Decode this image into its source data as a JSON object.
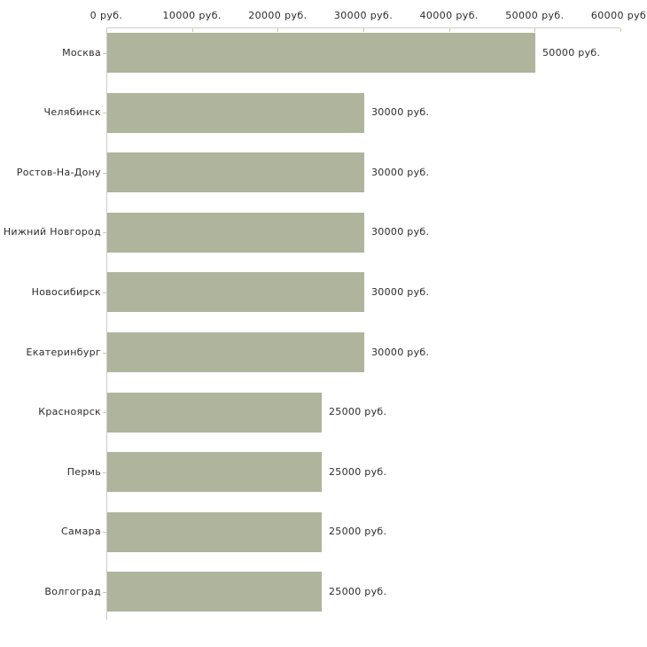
{
  "chart_data": {
    "type": "bar",
    "orientation": "horizontal",
    "title": "",
    "xlabel": "",
    "ylabel": "",
    "grid": false,
    "legend": false,
    "categories": [
      "Москва",
      "Челябинск",
      "Ростов-На-Дону",
      "Нижний Новгород",
      "Новосибирск",
      "Екатеринбург",
      "Красноярск",
      "Пермь",
      "Самара",
      "Волгоград"
    ],
    "values": [
      50000,
      30000,
      30000,
      30000,
      30000,
      30000,
      25000,
      25000,
      25000,
      25000
    ],
    "value_labels": [
      "50000 руб.",
      "30000 руб.",
      "30000 руб.",
      "30000 руб.",
      "30000 руб.",
      "30000 руб.",
      "25000 руб.",
      "25000 руб.",
      "25000 руб.",
      "25000 руб."
    ],
    "x_ticks": [
      0,
      10000,
      20000,
      30000,
      40000,
      50000,
      60000
    ],
    "x_tick_labels": [
      "0 руб.",
      "10000 руб.",
      "20000 руб.",
      "30000 руб.",
      "40000 руб.",
      "50000 руб.",
      "60000 руб."
    ],
    "xlim": [
      0,
      60000
    ],
    "colors": {
      "bar": "#aeb59c",
      "axis_line": "#cccccc",
      "tick_mark": "#ccc9a6",
      "text": "#2b2b2b",
      "background": "#ffffff"
    }
  }
}
